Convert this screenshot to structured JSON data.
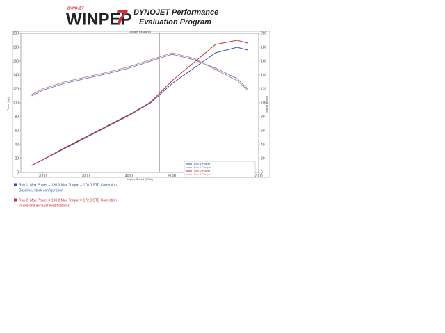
{
  "header": {
    "logo_small": "DYNOJET",
    "logo": "WINPEP",
    "logo_number": "7",
    "title_line1": "DYNOJET Performance",
    "title_line2": "Evaluation Program"
  },
  "chart_data": {
    "type": "line",
    "title": "Dynojet Research",
    "x_label": "Engine Speed (RPM)",
    "y_label": "Power (hp)",
    "y2_label": "Torque (ft-lbs)",
    "x": [
      1750,
      2000,
      2500,
      3000,
      3500,
      4000,
      4500,
      5000,
      5500,
      6000,
      6500,
      6750
    ],
    "xlim": [
      1500,
      7000
    ],
    "xticks": [
      2000,
      3000,
      4000,
      5000,
      6000,
      7000
    ],
    "ylim": [
      0,
      200
    ],
    "yticks": [
      0,
      20,
      40,
      60,
      80,
      100,
      120,
      140,
      160,
      180,
      200
    ],
    "y2lim": [
      0,
      200
    ],
    "y2ticks": [
      0,
      20,
      40,
      60,
      80,
      100,
      120,
      140,
      160,
      180,
      200
    ],
    "grid": false,
    "legend": "lower right",
    "cursor_x": 4700,
    "series": [
      {
        "name": "Run 1 Power",
        "color": "#3a4fa8",
        "values": [
          10,
          18,
          34,
          50,
          66,
          82,
          100,
          128,
          150,
          172,
          180,
          176
        ]
      },
      {
        "name": "Run 1 Torque",
        "color": "#7a86c4",
        "axis": "y2",
        "values": [
          110,
          118,
          128,
          135,
          142,
          150,
          160,
          170,
          162,
          150,
          135,
          120
        ]
      },
      {
        "name": "Run 2 Power",
        "color": "#c8323a",
        "values": [
          10,
          18,
          35,
          51,
          67,
          83,
          101,
          132,
          158,
          184,
          190,
          186
        ]
      },
      {
        "name": "Run 2 Torque",
        "color": "#c88a8e",
        "axis": "y2",
        "values": [
          112,
          120,
          130,
          137,
          144,
          152,
          162,
          172,
          164,
          148,
          132,
          118
        ]
      }
    ]
  },
  "notes": [
    {
      "text": "Run 1: Max Power = 180.0  Max Torque = 170.0  STD Correction",
      "color": "#3a4fa8"
    },
    {
      "text": "Baseline, stock configuration",
      "color": "#3a4fa8"
    },
    {
      "text": "Run 2: Max Power = 190.0  Max Torque = 172.0  STD Correction",
      "color": "#c8323a"
    },
    {
      "text": "Intake and exhaust modifications",
      "color": "#c8323a"
    }
  ]
}
